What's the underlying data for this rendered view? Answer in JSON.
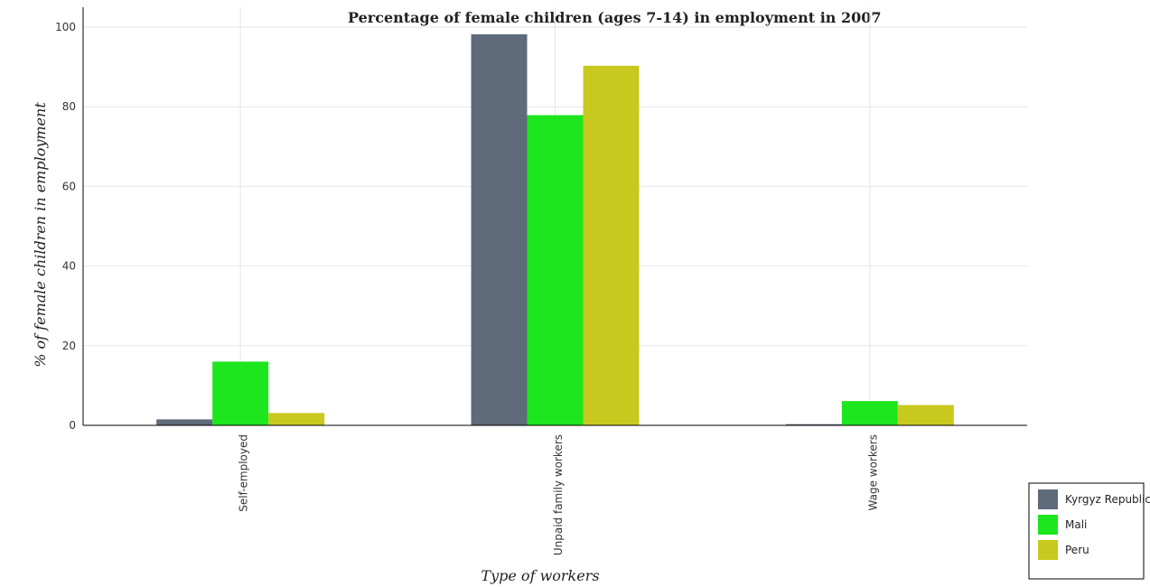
{
  "chart_data": {
    "type": "bar",
    "title": "Percentage of female children (ages 7-14) in employment in 2007",
    "xlabel": "Type of workers",
    "ylabel": "% of female children in employment",
    "categories": [
      "Self-employed",
      "Unpaid family workers",
      "Wage workers"
    ],
    "ylim": [
      0,
      105
    ],
    "yticks": [
      "0",
      "20",
      "40",
      "60",
      "80",
      "100"
    ],
    "grid": true,
    "legend_position": "bottom-right",
    "series": [
      {
        "name": "Kyrgyz Republic",
        "color": "#5f6b7a",
        "values": [
          1.5,
          98.2,
          0.3
        ]
      },
      {
        "name": "Mali",
        "color": "#1ee61e",
        "values": [
          16.0,
          77.9,
          6.1
        ]
      },
      {
        "name": "Peru",
        "color": "#c8c81e",
        "values": [
          3.1,
          90.3,
          5.1
        ]
      }
    ]
  }
}
